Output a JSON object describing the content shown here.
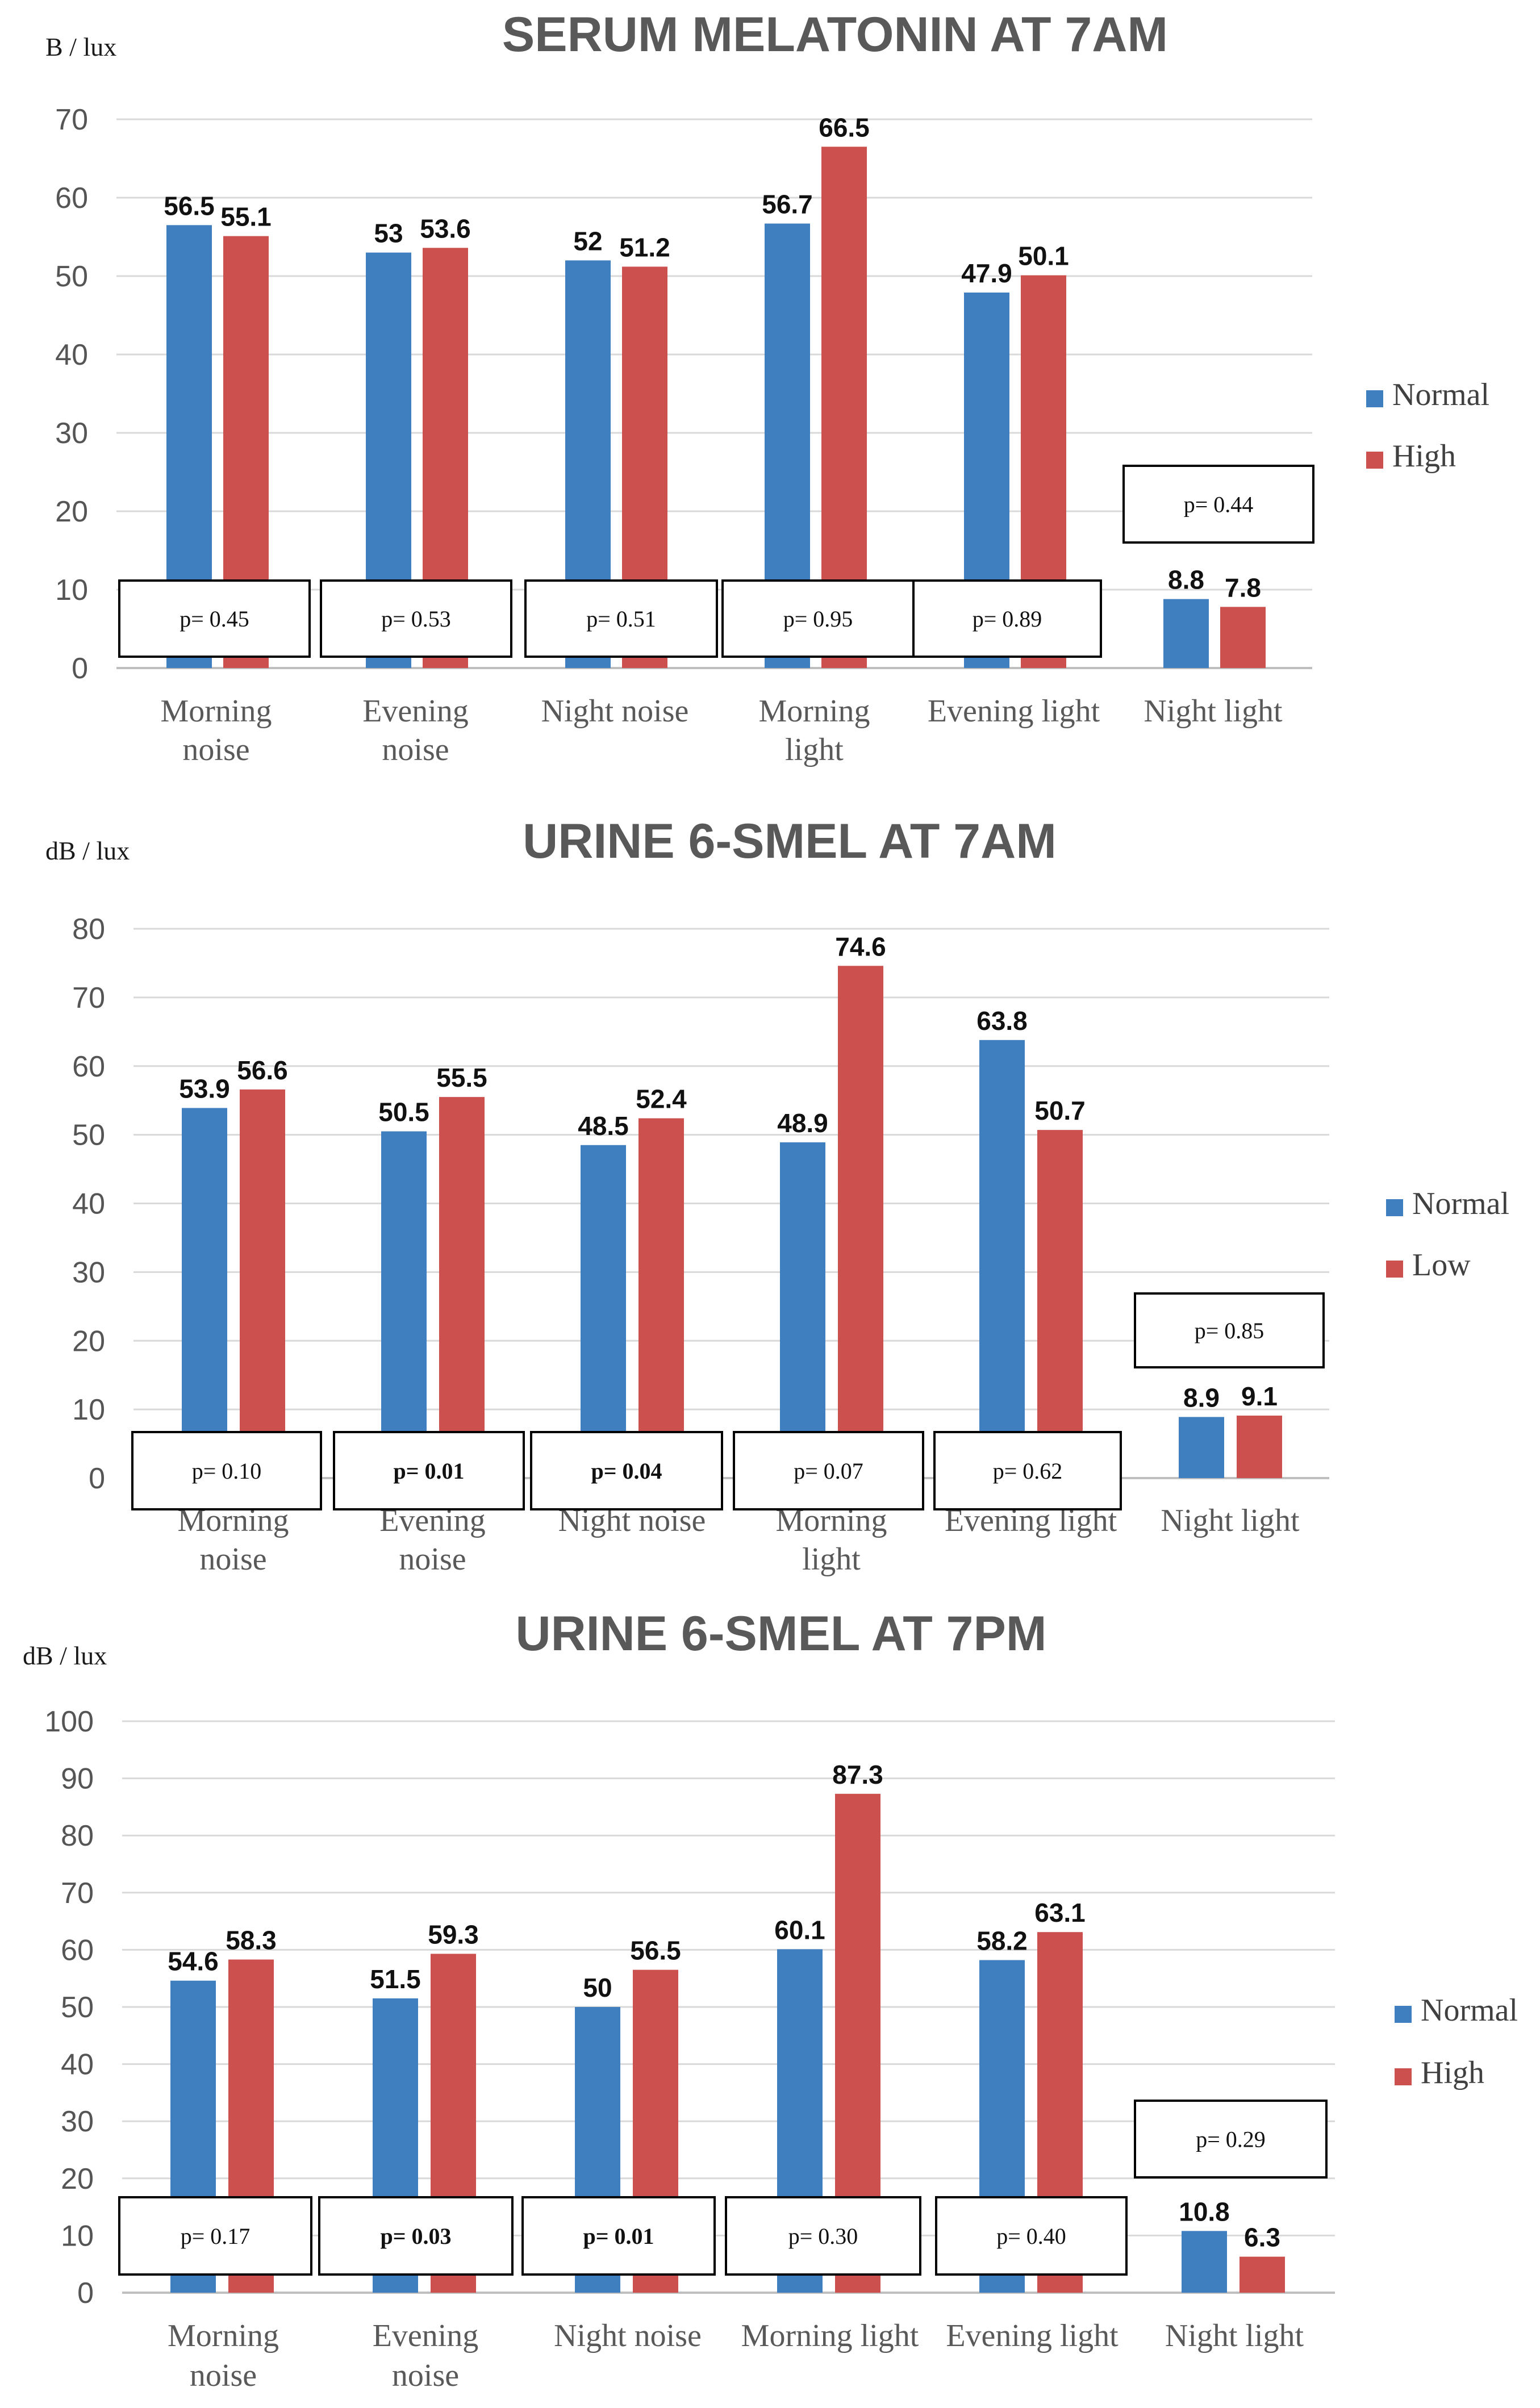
{
  "colors": {
    "normal": "#3f7fbf",
    "high": "#cc504d",
    "grid": "#d9d9d9",
    "axis": "#bfbfbf"
  },
  "chart_data": [
    {
      "type": "bar",
      "title": "SERUM MELATONIN AT 7AM",
      "ylabel": "B / lux",
      "ylim": [
        0,
        70
      ],
      "yticks": [
        "0",
        "10",
        "20",
        "30",
        "40",
        "50",
        "60",
        "70"
      ],
      "categories": [
        [
          "Morning",
          "noise"
        ],
        [
          "Evening",
          "noise"
        ],
        [
          "Night noise"
        ],
        [
          "Morning",
          "light"
        ],
        [
          "Evening light"
        ],
        [
          "Night light"
        ]
      ],
      "series": [
        {
          "name": "Normal",
          "values": [
            56.5,
            53,
            52,
            56.7,
            47.9,
            8.8
          ],
          "labels": [
            "56.5",
            "53",
            "52",
            "56.7",
            "47.9",
            "8.8"
          ]
        },
        {
          "name": "High",
          "values": [
            55.1,
            53.6,
            51.2,
            66.5,
            50.1,
            7.8
          ],
          "labels": [
            "55.1",
            "53.6",
            "51.2",
            "66.5",
            "50.1",
            "7.8"
          ]
        }
      ],
      "p_values": [
        {
          "text": "p= 0.45",
          "bold": false
        },
        {
          "text": "p= 0.53",
          "bold": false
        },
        {
          "text": "p= 0.51",
          "bold": false
        },
        {
          "text": "p= 0.95",
          "bold": false
        },
        {
          "text": "p= 0.89",
          "bold": false
        },
        {
          "text": "p= 0.44",
          "bold": false
        }
      ],
      "legend": "right"
    },
    {
      "type": "bar",
      "title": "URINE 6-SMEL AT 7AM",
      "ylabel": "dB / lux",
      "ylim": [
        0,
        80
      ],
      "yticks": [
        "0",
        "10",
        "20",
        "30",
        "40",
        "50",
        "60",
        "70",
        "80"
      ],
      "categories": [
        [
          "Morning",
          "noise"
        ],
        [
          "Evening",
          "noise"
        ],
        [
          "Night noise"
        ],
        [
          "Morning",
          "light"
        ],
        [
          "Evening light"
        ],
        [
          "Night light"
        ]
      ],
      "series": [
        {
          "name": "Normal",
          "values": [
            53.9,
            50.5,
            48.5,
            48.9,
            63.8,
            8.9
          ],
          "labels": [
            "53.9",
            "50.5",
            "48.5",
            "48.9",
            "63.8",
            "8.9"
          ]
        },
        {
          "name": "Low",
          "values": [
            56.6,
            55.5,
            52.4,
            74.6,
            50.7,
            9.1
          ],
          "labels": [
            "56.6",
            "55.5",
            "52.4",
            "74.6",
            "50.7",
            "9.1"
          ]
        }
      ],
      "p_values": [
        {
          "text": "p= 0.10",
          "bold": false
        },
        {
          "text": "p= 0.01",
          "bold": true
        },
        {
          "text": "p= 0.04",
          "bold": true
        },
        {
          "text": "p= 0.07",
          "bold": false
        },
        {
          "text": "p= 0.62",
          "bold": false
        },
        {
          "text": "p= 0.85",
          "bold": false
        }
      ],
      "legend": "right"
    },
    {
      "type": "bar",
      "title": "URINE 6-SMEL AT 7PM",
      "ylabel": "dB / lux",
      "ylim": [
        0,
        100
      ],
      "yticks": [
        "0",
        "10",
        "20",
        "30",
        "40",
        "50",
        "60",
        "70",
        "80",
        "90",
        "100"
      ],
      "categories": [
        [
          "Morning",
          "noise"
        ],
        [
          "Evening",
          "noise"
        ],
        [
          "Night noise"
        ],
        [
          "Morning light"
        ],
        [
          "Evening light"
        ],
        [
          "Night light"
        ]
      ],
      "series": [
        {
          "name": "Normal",
          "values": [
            54.6,
            51.5,
            50,
            60.1,
            58.2,
            10.8
          ],
          "labels": [
            "54.6",
            "51.5",
            "50",
            "60.1",
            "58.2",
            "10.8"
          ]
        },
        {
          "name": "High",
          "values": [
            58.3,
            59.3,
            56.5,
            87.3,
            63.1,
            6.3
          ],
          "labels": [
            "58.3",
            "59.3",
            "56.5",
            "87.3",
            "63.1",
            "6.3"
          ]
        }
      ],
      "p_values": [
        {
          "text": "p= 0.17",
          "bold": false
        },
        {
          "text": "p= 0.03",
          "bold": true
        },
        {
          "text": "p= 0.01",
          "bold": true
        },
        {
          "text": "p= 0.30",
          "bold": false
        },
        {
          "text": "p= 0.40",
          "bold": false
        },
        {
          "text": "p= 0.29",
          "bold": false
        }
      ],
      "legend": "right"
    }
  ]
}
